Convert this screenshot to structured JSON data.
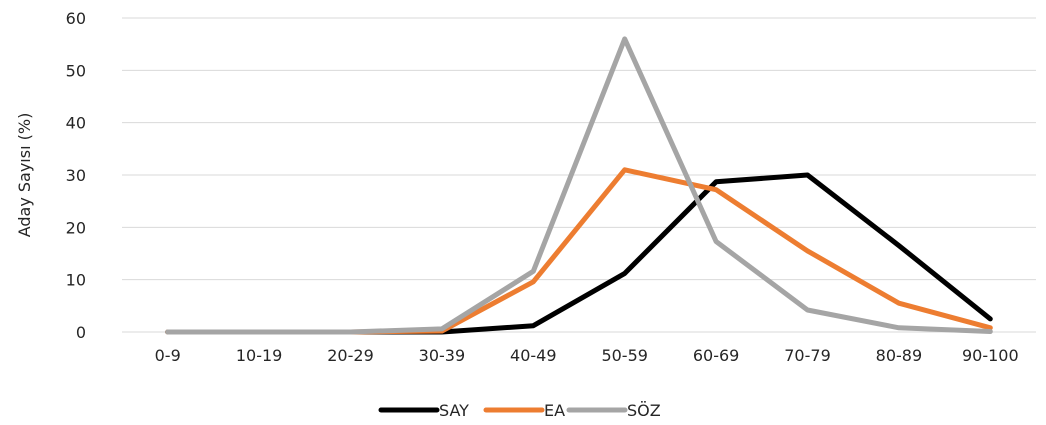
{
  "chart_data": {
    "type": "line",
    "ylabel": "Aday Sayısı (%)",
    "xlabel": "",
    "ylim": [
      0,
      60
    ],
    "yticks": [
      0,
      10,
      20,
      30,
      40,
      50,
      60
    ],
    "grid": "horizontal",
    "legend": "bottom",
    "categories": [
      "0-9",
      "10-19",
      "20-29",
      "30-39",
      "40-49",
      "50-59",
      "60-69",
      "70-79",
      "80-89",
      "90-100"
    ],
    "series": [
      {
        "name": "SAY",
        "color": "#000000",
        "values": [
          0,
          0,
          0,
          0,
          1.2,
          11.2,
          28.7,
          30.0,
          16.5,
          2.5
        ]
      },
      {
        "name": "EA",
        "color": "#ED7D31",
        "values": [
          0,
          0,
          0,
          0.2,
          9.6,
          31.0,
          27.2,
          15.5,
          5.5,
          0.8
        ]
      },
      {
        "name": "SÖZ",
        "color": "#A5A5A5",
        "values": [
          0,
          0,
          0,
          0.6,
          11.6,
          56.0,
          17.3,
          4.2,
          0.8,
          0.1
        ]
      }
    ]
  }
}
